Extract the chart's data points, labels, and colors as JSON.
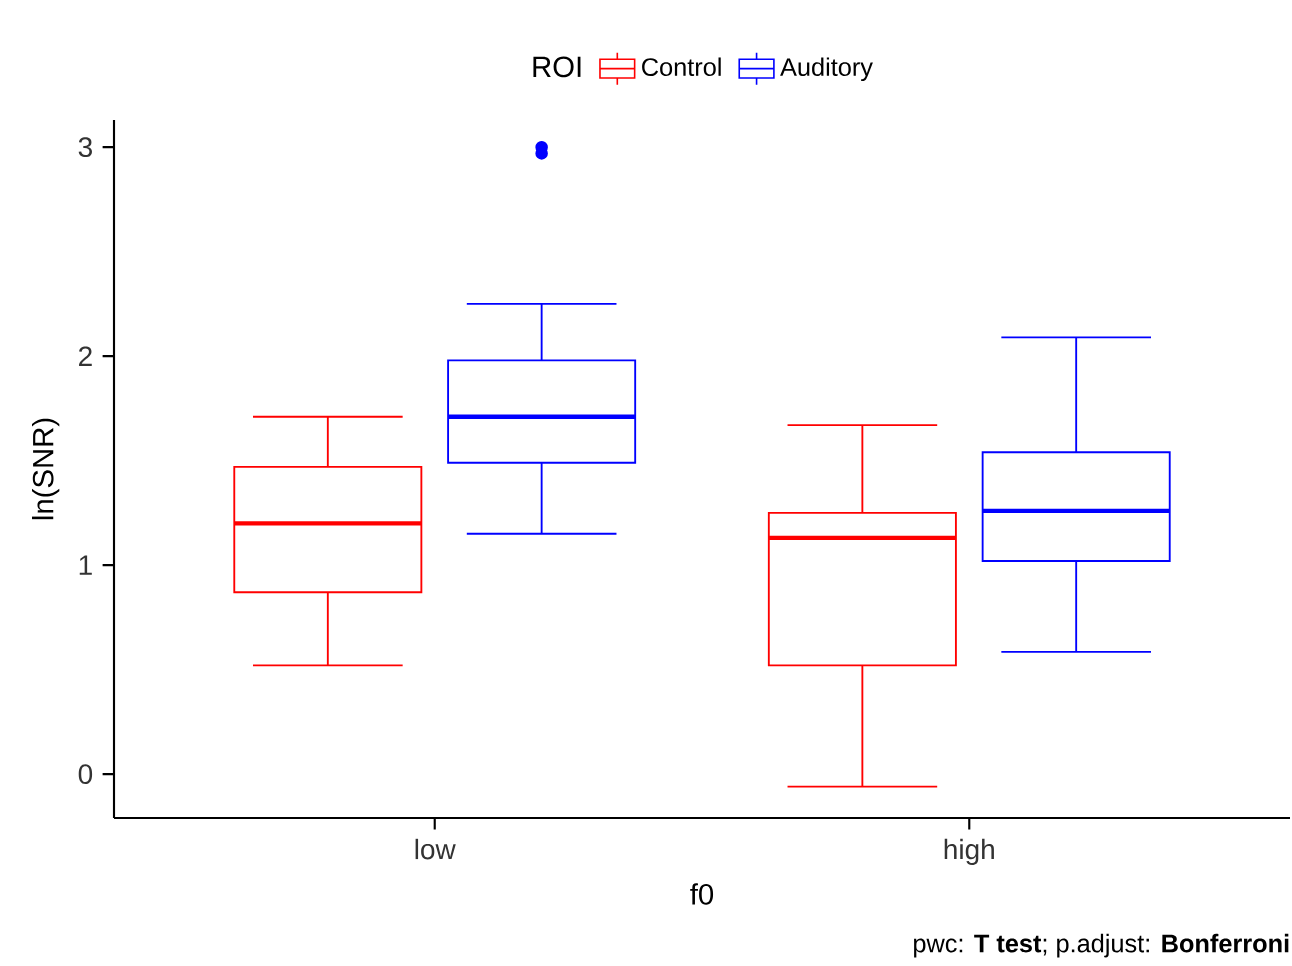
{
  "chart_data": {
    "type": "box",
    "xlabel": "f0",
    "ylabel": "ln(SNR)",
    "legend_title": "ROI",
    "legend": "top",
    "categories": [
      "low",
      "high"
    ],
    "ylim": [
      -0.21,
      3.13
    ],
    "yticks": [
      0,
      1,
      2,
      3
    ],
    "series": [
      {
        "name": "Control",
        "color": "#ff0000",
        "boxes": [
          {
            "low": 0.52,
            "q1": 0.87,
            "median": 1.2,
            "q3": 1.47,
            "high": 1.71
          },
          {
            "low": -0.06,
            "q1": 0.52,
            "median": 1.13,
            "q3": 1.25,
            "high": 1.67
          }
        ]
      },
      {
        "name": "Auditory",
        "color": "#0000ff",
        "boxes": [
          {
            "low": 1.15,
            "q1": 1.49,
            "median": 1.71,
            "q3": 1.98,
            "high": 2.25,
            "outliers": [
              2.97,
              3.0
            ]
          },
          {
            "low": 0.585,
            "q1": 1.02,
            "median": 1.26,
            "q3": 1.54,
            "high": 2.09
          }
        ]
      }
    ],
    "annotations": [
      "pwc: **T test**; p.adjust: **Bonferroni**"
    ]
  }
}
